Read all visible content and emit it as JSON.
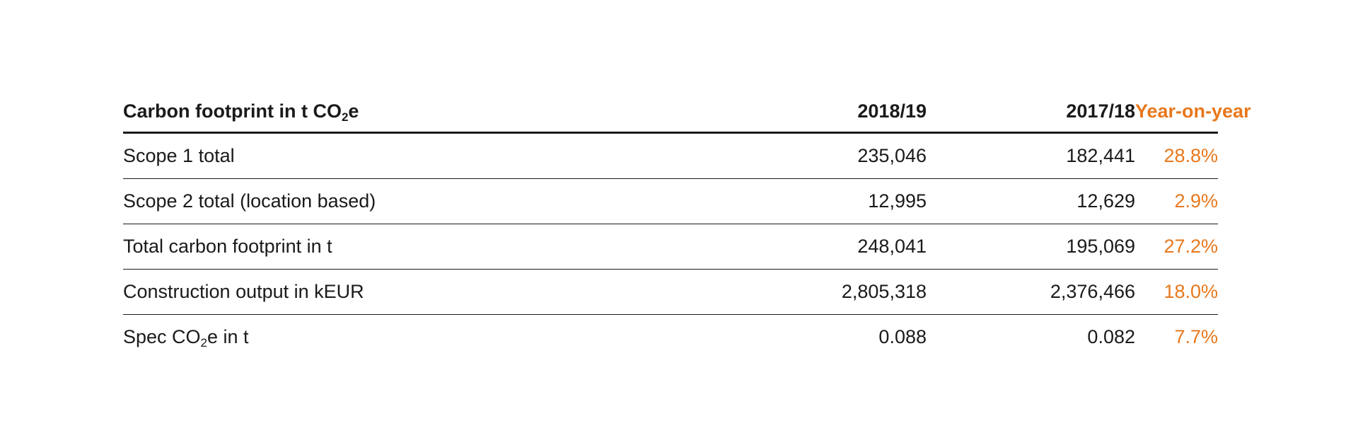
{
  "table": {
    "header": {
      "label_prefix": "Carbon footprint in t CO",
      "label_sub": "2",
      "label_suffix": "e",
      "col_1": "2018/19",
      "col_2": "2017/18",
      "col_3": "Year-on-year"
    },
    "rows": [
      {
        "label": "Scope 1 total",
        "val_2018_19": "235,046",
        "val_2017_18": "182,441",
        "yoy": "28.8%"
      },
      {
        "label": "Scope 2 total (location based)",
        "val_2018_19": "12,995",
        "val_2017_18": "12,629",
        "yoy": "2.9%"
      },
      {
        "label": "Total carbon footprint in t",
        "val_2018_19": "248,041",
        "val_2017_18": "195,069",
        "yoy": "27.2%"
      },
      {
        "label": "Construction output in kEUR",
        "val_2018_19": "2,805,318",
        "val_2017_18": "2,376,466",
        "yoy": "18.0%"
      },
      {
        "label_prefix": "Spec CO",
        "label_sub": "2",
        "label_suffix": "e in t",
        "val_2018_19": "0.088",
        "val_2017_18": "0.082",
        "yoy": "7.7%"
      }
    ]
  },
  "colors": {
    "accent": "#e8781c",
    "text": "#1a1a1a",
    "rule": "#1a1a1a"
  }
}
